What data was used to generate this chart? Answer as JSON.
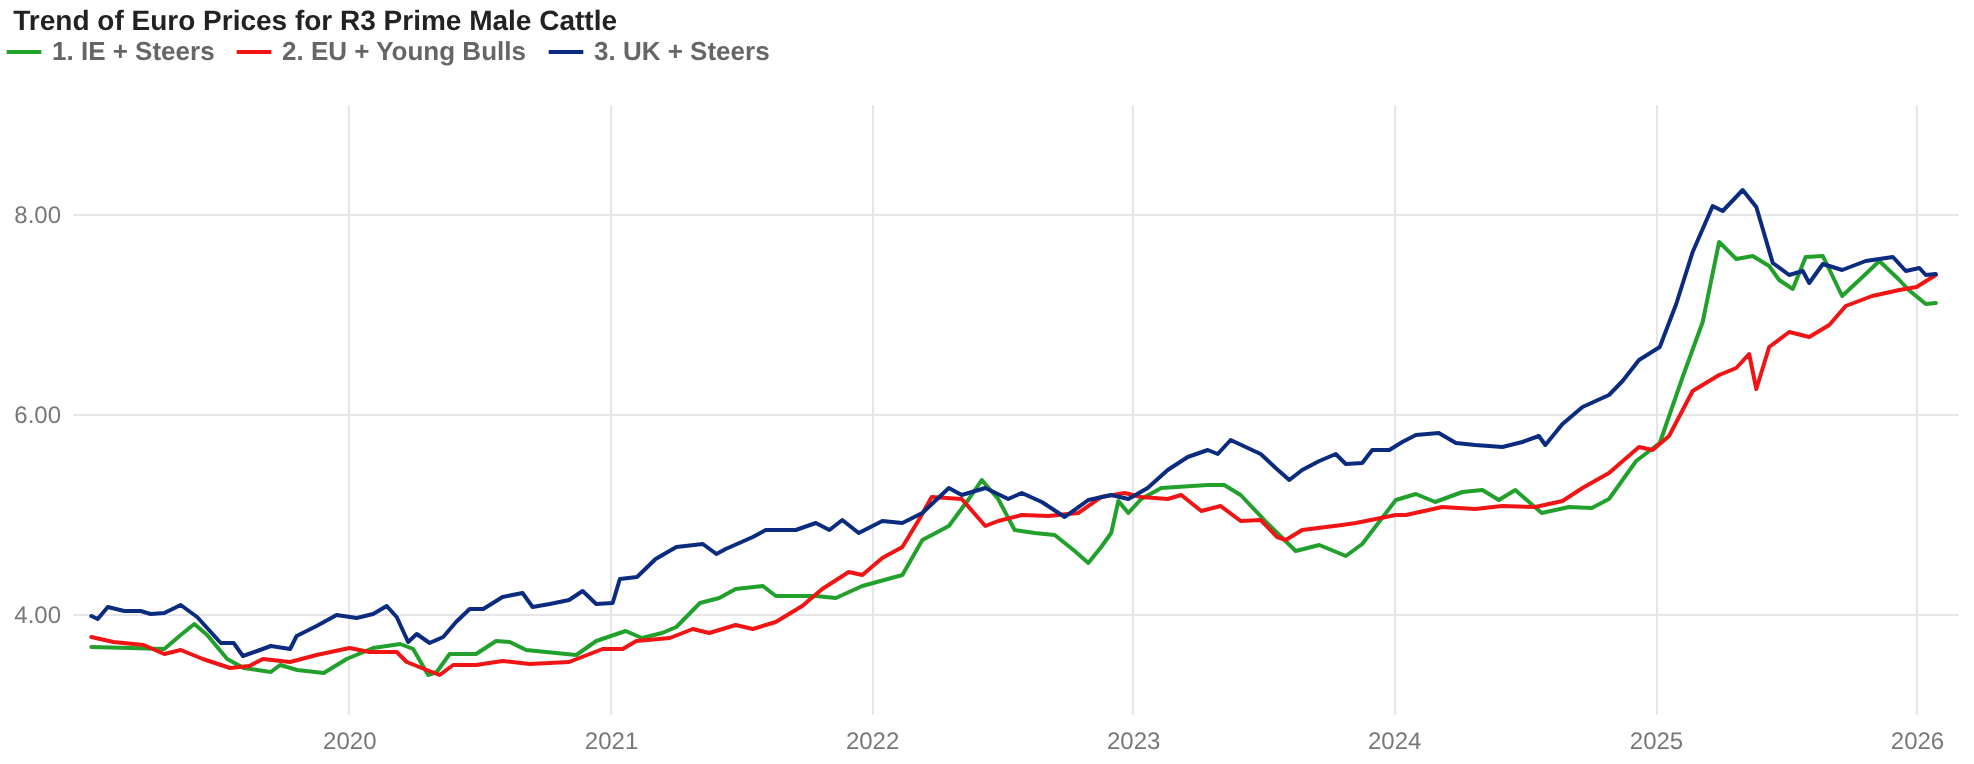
{
  "chart_data": {
    "type": "line",
    "title": "Trend of Euro Prices for R3 Prime Male Cattle",
    "xlim": [
      "2018-12-10",
      "2026-02-28"
    ],
    "ylim": [
      3.0,
      9.1
    ],
    "xticks": [
      "2020",
      "2021",
      "2022",
      "2023",
      "2024",
      "2025",
      "2026"
    ],
    "yticks": [
      {
        "value": 4,
        "label": "4.00"
      },
      {
        "value": 6,
        "label": "6.00"
      },
      {
        "value": 8,
        "label": "8.00"
      }
    ],
    "grid": true,
    "legend": "top left",
    "line_style": "solid",
    "marker": "none",
    "series": [
      {
        "name": "1. IE + Steers",
        "color": "#22a02c",
        "x": [
          "2019-01-06",
          "2019-03-02",
          "2019-04-18",
          "2019-05-11",
          "2019-05-30",
          "2019-06-17",
          "2019-07-15",
          "2019-08-07",
          "2019-09-14",
          "2019-09-27",
          "2019-10-21",
          "2019-11-27",
          "2019-12-29",
          "2020-02-04",
          "2020-03-13",
          "2020-03-31",
          "2020-04-21",
          "2020-05-03",
          "2020-05-21",
          "2020-06-27",
          "2020-07-25",
          "2020-08-13",
          "2020-09-05",
          "2020-11-14",
          "2020-12-12",
          "2021-01-22",
          "2021-02-14",
          "2021-03-14",
          "2021-04-03",
          "2021-05-06",
          "2021-06-02",
          "2021-06-25",
          "2021-08-02",
          "2021-08-20",
          "2021-10-15",
          "2021-11-12",
          "2021-12-19",
          "2022-02-13",
          "2022-03-13",
          "2022-04-19",
          "2022-05-17",
          "2022-06-04",
          "2022-06-27",
          "2022-07-20",
          "2022-08-17",
          "2022-09-14",
          "2022-10-12",
          "2022-10-31",
          "2022-11-18",
          "2022-12-02",
          "2022-12-12",
          "2022-12-26",
          "2023-01-13",
          "2023-02-10",
          "2023-04-16",
          "2023-05-09",
          "2023-06-01",
          "2023-07-08",
          "2023-08-17",
          "2023-09-19",
          "2023-10-26",
          "2023-11-18",
          "2024-01-04",
          "2024-02-01",
          "2024-02-28",
          "2024-04-06",
          "2024-05-04",
          "2024-05-27",
          "2024-06-19",
          "2024-07-26",
          "2024-09-02",
          "2024-10-04",
          "2024-10-28",
          "2024-12-05",
          "2025-01-07",
          "2025-02-08",
          "2025-03-08",
          "2025-03-31",
          "2025-04-24",
          "2025-05-17",
          "2025-06-09",
          "2025-06-23",
          "2025-07-12",
          "2025-07-30",
          "2025-08-23",
          "2025-09-19",
          "2025-10-19",
          "2025-11-10",
          "2025-12-08",
          "2025-12-21",
          "2026-01-14",
          "2026-01-28"
        ],
        "values": [
          3.67,
          3.66,
          3.65,
          3.79,
          3.9,
          3.79,
          3.55,
          3.46,
          3.42,
          3.49,
          3.44,
          3.41,
          3.55,
          3.66,
          3.7,
          3.65,
          3.39,
          3.42,
          3.6,
          3.6,
          3.73,
          3.72,
          3.64,
          3.59,
          3.73,
          3.83,
          3.76,
          3.81,
          3.87,
          4.11,
          4.16,
          4.25,
          4.28,
          4.18,
          4.18,
          4.16,
          4.28,
          4.39,
          4.74,
          4.88,
          5.15,
          5.34,
          5.15,
          4.84,
          4.81,
          4.79,
          4.63,
          4.51,
          4.67,
          4.81,
          5.13,
          5.01,
          5.15,
          5.26,
          5.29,
          5.29,
          5.19,
          4.91,
          4.63,
          4.69,
          4.58,
          4.7,
          5.14,
          5.2,
          5.12,
          5.22,
          5.24,
          5.14,
          5.24,
          5.01,
          5.07,
          5.06,
          5.15,
          5.53,
          5.71,
          6.37,
          6.92,
          7.72,
          7.55,
          7.58,
          7.48,
          7.34,
          7.25,
          7.57,
          7.58,
          7.18,
          7.38,
          7.53,
          7.34,
          7.24,
          7.1,
          7.11
        ]
      },
      {
        "name": "2. EU + Young Bulls",
        "color": "#f01414",
        "x": [
          "2019-01-06",
          "2019-02-06",
          "2019-03-20",
          "2019-04-18",
          "2019-05-11",
          "2019-06-11",
          "2019-07-19",
          "2019-08-15",
          "2019-09-03",
          "2019-10-11",
          "2019-11-17",
          "2020-01-02",
          "2020-01-30",
          "2020-03-08",
          "2020-03-22",
          "2020-04-19",
          "2020-05-07",
          "2020-05-26",
          "2020-06-27",
          "2020-08-03",
          "2020-09-10",
          "2020-11-04",
          "2020-12-21",
          "2021-01-18",
          "2021-02-06",
          "2021-03-25",
          "2021-04-26",
          "2021-05-19",
          "2021-06-25",
          "2021-07-19",
          "2021-08-20",
          "2021-09-26",
          "2021-10-24",
          "2021-11-30",
          "2021-12-19",
          "2022-01-16",
          "2022-02-13",
          "2022-03-08",
          "2022-03-26",
          "2022-05-07",
          "2022-06-09",
          "2022-06-27",
          "2022-07-30",
          "2022-09-05",
          "2022-10-17",
          "2022-11-18",
          "2022-12-21",
          "2023-01-13",
          "2023-02-19",
          "2023-03-10",
          "2023-04-07",
          "2023-05-04",
          "2023-06-01",
          "2023-06-29",
          "2023-07-22",
          "2023-08-03",
          "2023-08-26",
          "2023-10-21",
          "2023-11-09",
          "2024-01-04",
          "2024-01-18",
          "2024-03-09",
          "2024-04-24",
          "2024-06-01",
          "2024-07-17",
          "2024-08-24",
          "2024-09-21",
          "2024-10-28",
          "2024-12-09",
          "2024-12-28",
          "2025-01-20",
          "2025-02-22",
          "2025-03-31",
          "2025-04-24",
          "2025-05-12",
          "2025-05-22",
          "2025-06-09",
          "2025-07-07",
          "2025-08-04",
          "2025-09-01",
          "2025-09-24",
          "2025-10-31",
          "2025-12-08",
          "2026-01-01",
          "2026-01-28"
        ],
        "values": [
          3.77,
          3.72,
          3.69,
          3.6,
          3.64,
          3.55,
          3.46,
          3.48,
          3.55,
          3.52,
          3.59,
          3.66,
          3.62,
          3.62,
          3.52,
          3.44,
          3.39,
          3.49,
          3.49,
          3.53,
          3.5,
          3.52,
          3.65,
          3.65,
          3.73,
          3.76,
          3.85,
          3.81,
          3.89,
          3.85,
          3.92,
          4.08,
          4.25,
          4.42,
          4.39,
          4.56,
          4.67,
          4.94,
          5.17,
          5.15,
          4.88,
          4.93,
          4.99,
          4.98,
          5.01,
          5.17,
          5.21,
          5.17,
          5.15,
          5.19,
          5.03,
          5.08,
          4.93,
          4.94,
          4.77,
          4.74,
          4.84,
          4.89,
          4.91,
          4.99,
          4.99,
          5.07,
          5.05,
          5.08,
          5.07,
          5.13,
          5.26,
          5.41,
          5.67,
          5.64,
          5.78,
          6.23,
          6.39,
          6.46,
          6.6,
          6.25,
          6.67,
          6.82,
          6.77,
          6.89,
          7.08,
          7.18,
          7.24,
          7.27,
          7.39
        ]
      },
      {
        "name": "3. UK + Steers",
        "color": "#0b2c7e",
        "x": [
          "2019-01-06",
          "2019-01-15",
          "2019-01-29",
          "2019-02-21",
          "2019-03-16",
          "2019-03-30",
          "2019-04-18",
          "2019-05-11",
          "2019-06-03",
          "2019-07-06",
          "2019-07-24",
          "2019-08-06",
          "2019-08-26",
          "2019-09-14",
          "2019-10-11",
          "2019-10-20",
          "2019-11-17",
          "2019-12-15",
          "2020-01-12",
          "2020-02-04",
          "2020-02-23",
          "2020-03-08",
          "2020-03-24",
          "2020-04-05",
          "2020-04-23",
          "2020-05-12",
          "2020-05-30",
          "2020-06-18",
          "2020-07-07",
          "2020-08-03",
          "2020-08-31",
          "2020-09-14",
          "2020-10-08",
          "2020-11-04",
          "2020-11-23",
          "2020-12-12",
          "2021-01-04",
          "2021-01-14",
          "2021-02-07",
          "2021-03-05",
          "2021-04-03",
          "2021-05-10",
          "2021-05-29",
          "2021-06-11",
          "2021-07-19",
          "2021-08-06",
          "2021-09-17",
          "2021-10-15",
          "2021-11-03",
          "2021-11-21",
          "2021-12-14",
          "2022-01-16",
          "2022-02-13",
          "2022-03-13",
          "2022-04-19",
          "2022-05-07",
          "2022-06-09",
          "2022-07-11",
          "2022-07-30",
          "2022-08-27",
          "2022-09-28",
          "2022-10-31",
          "2022-12-02",
          "2022-12-26",
          "2023-01-22",
          "2023-02-19",
          "2023-03-19",
          "2023-04-16",
          "2023-04-30",
          "2023-05-18",
          "2023-06-29",
          "2023-07-20",
          "2023-08-08",
          "2023-08-26",
          "2023-09-19",
          "2023-10-12",
          "2023-10-26",
          "2023-11-18",
          "2023-12-02",
          "2023-12-26",
          "2024-01-13",
          "2024-02-01",
          "2024-03-04",
          "2024-03-28",
          "2024-04-24",
          "2024-06-01",
          "2024-06-29",
          "2024-07-22",
          "2024-07-31",
          "2024-08-24",
          "2024-09-21",
          "2024-10-28",
          "2024-11-16",
          "2024-12-09",
          "2025-01-07",
          "2025-01-30",
          "2025-02-22",
          "2025-03-22",
          "2025-04-05",
          "2025-05-03",
          "2025-05-22",
          "2025-06-14",
          "2025-07-07",
          "2025-07-26",
          "2025-08-04",
          "2025-08-23",
          "2025-09-19",
          "2025-10-22",
          "2025-11-29",
          "2025-12-17",
          "2026-01-05",
          "2026-01-14",
          "2026-01-28"
        ],
        "values": [
          3.98,
          3.95,
          4.07,
          4.03,
          4.03,
          4.0,
          4.01,
          4.09,
          3.97,
          3.71,
          3.71,
          3.58,
          3.63,
          3.68,
          3.65,
          3.78,
          3.88,
          3.99,
          3.96,
          4.0,
          4.08,
          3.97,
          3.72,
          3.8,
          3.71,
          3.77,
          3.92,
          4.05,
          4.05,
          4.17,
          4.21,
          4.07,
          4.1,
          4.14,
          4.23,
          4.1,
          4.11,
          4.35,
          4.37,
          4.55,
          4.67,
          4.7,
          4.6,
          4.65,
          4.77,
          4.84,
          4.84,
          4.91,
          4.84,
          4.94,
          4.81,
          4.93,
          4.91,
          5.01,
          5.26,
          5.19,
          5.26,
          5.15,
          5.21,
          5.12,
          4.97,
          5.14,
          5.19,
          5.15,
          5.26,
          5.44,
          5.57,
          5.64,
          5.6,
          5.74,
          5.6,
          5.46,
          5.34,
          5.44,
          5.53,
          5.6,
          5.5,
          5.51,
          5.64,
          5.64,
          5.72,
          5.79,
          5.81,
          5.71,
          5.69,
          5.67,
          5.72,
          5.78,
          5.69,
          5.9,
          6.07,
          6.19,
          6.33,
          6.54,
          6.67,
          7.1,
          7.62,
          8.08,
          8.03,
          8.24,
          8.07,
          7.51,
          7.39,
          7.43,
          7.31,
          7.5,
          7.44,
          7.53,
          7.57,
          7.43,
          7.46,
          7.39,
          7.4
        ]
      }
    ]
  }
}
